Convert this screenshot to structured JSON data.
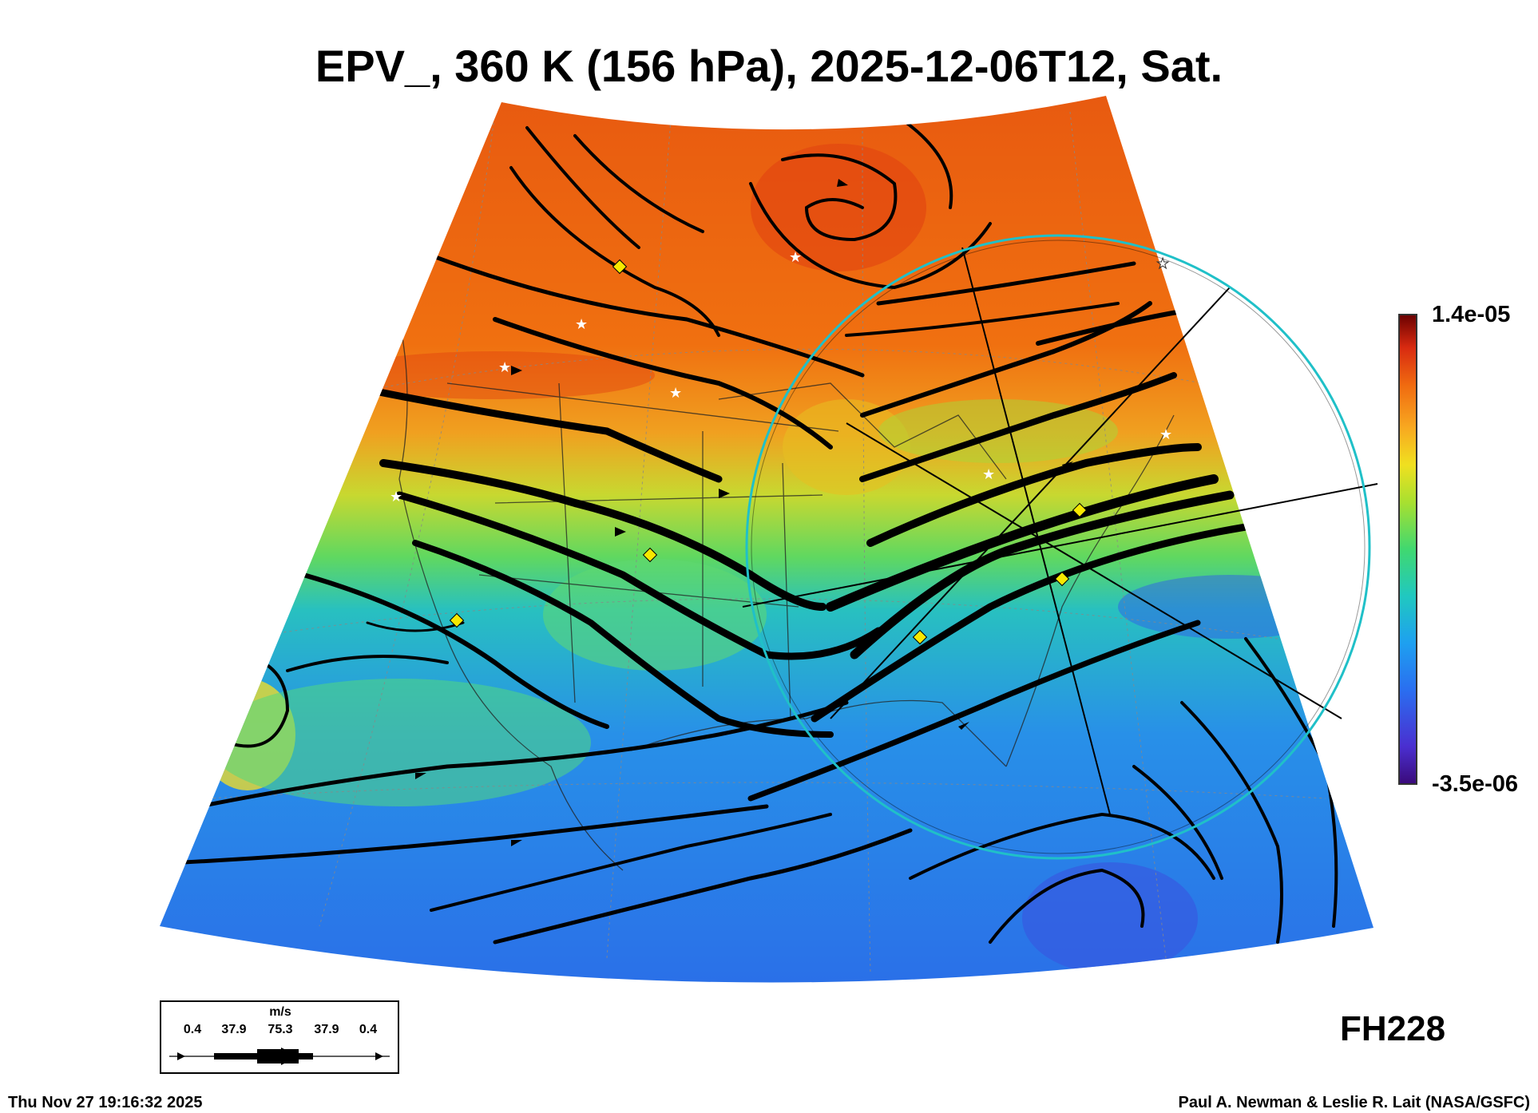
{
  "title": "EPV_, 360 K (156 hPa), 2025-12-06T12, Sat.",
  "colorbar": {
    "max_label": "1.4e-05",
    "min_label": "-3.5e-06",
    "colors": [
      "#3a0a7a",
      "#4a2fd0",
      "#2a6ef0",
      "#1ea0f0",
      "#20c8c0",
      "#40d870",
      "#a8e030",
      "#f0e020",
      "#f8a820",
      "#f06a10",
      "#d82a10",
      "#a00a0a",
      "#6a0000"
    ]
  },
  "forecast_hour": "FH228",
  "timestamp": "Thu Nov 27 19:16:32 2025",
  "credit": "Paul A. Newman & Leslie R. Lait (NASA/GSFC)",
  "wind_legend": {
    "unit": "m/s",
    "values": [
      "0.4",
      "37.9",
      "75.3",
      "37.9",
      "0.4"
    ]
  },
  "markers": {
    "diamond_color": "#f8e800",
    "star_color": "#ffffff",
    "circle_color": "#20c0c8"
  }
}
